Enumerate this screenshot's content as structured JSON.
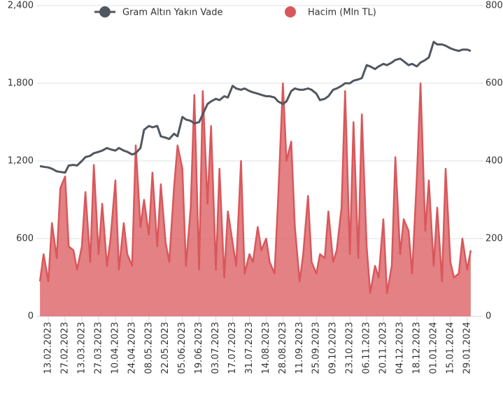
{
  "chart_data": {
    "type": "line",
    "x": [
      "06.02.2023",
      "09.02.2023",
      "13.02.2023",
      "16.02.2023",
      "20.02.2023",
      "23.02.2023",
      "27.02.2023",
      "02.03.2023",
      "06.03.2023",
      "09.03.2023",
      "13.03.2023",
      "16.03.2023",
      "20.03.2023",
      "23.03.2023",
      "27.03.2023",
      "30.03.2023",
      "03.04.2023",
      "06.04.2023",
      "10.04.2023",
      "13.04.2023",
      "17.04.2023",
      "20.04.2023",
      "24.04.2023",
      "27.04.2023",
      "01.05.2023",
      "04.05.2023",
      "08.05.2023",
      "11.05.2023",
      "15.05.2023",
      "18.05.2023",
      "22.05.2023",
      "25.05.2023",
      "29.05.2023",
      "01.06.2023",
      "05.06.2023",
      "08.06.2023",
      "12.06.2023",
      "15.06.2023",
      "19.06.2023",
      "22.06.2023",
      "26.06.2023",
      "29.06.2023",
      "03.07.2023",
      "06.07.2023",
      "10.07.2023",
      "13.07.2023",
      "17.07.2023",
      "20.07.2023",
      "24.07.2023",
      "27.07.2023",
      "31.07.2023",
      "03.08.2023",
      "07.08.2023",
      "10.08.2023",
      "14.08.2023",
      "17.08.2023",
      "21.08.2023",
      "24.08.2023",
      "28.08.2023",
      "31.08.2023",
      "04.09.2023",
      "07.09.2023",
      "11.09.2023",
      "14.09.2023",
      "18.09.2023",
      "21.09.2023",
      "25.09.2023",
      "28.09.2023",
      "02.10.2023",
      "05.10.2023",
      "09.10.2023",
      "12.10.2023",
      "16.10.2023",
      "19.10.2023",
      "23.10.2023",
      "26.10.2023",
      "30.10.2023",
      "02.11.2023",
      "06.11.2023",
      "09.11.2023",
      "13.11.2023",
      "16.11.2023",
      "20.11.2023",
      "23.11.2023",
      "27.11.2023",
      "30.11.2023",
      "04.12.2023",
      "07.12.2023",
      "11.12.2023",
      "14.12.2023",
      "18.12.2023",
      "21.12.2023",
      "25.12.2023",
      "28.12.2023",
      "01.01.2024",
      "04.01.2024",
      "08.01.2024",
      "11.01.2024",
      "15.01.2024",
      "18.01.2024",
      "22.01.2024",
      "25.01.2024",
      "29.01.2024",
      "01.02.2024"
    ],
    "series": [
      {
        "name": "Gram Altın Yakın Vade",
        "color": "#50575e",
        "values": [
          1160,
          1155,
          1150,
          1140,
          1120,
          1115,
          1110,
          1165,
          1170,
          1165,
          1200,
          1230,
          1240,
          1260,
          1270,
          1280,
          1300,
          1290,
          1280,
          1300,
          1280,
          1270,
          1250,
          1260,
          1300,
          1440,
          1470,
          1460,
          1470,
          1390,
          1380,
          1370,
          1410,
          1390,
          1540,
          1520,
          1510,
          1490,
          1500,
          1560,
          1640,
          1660,
          1680,
          1670,
          1700,
          1690,
          1780,
          1760,
          1750,
          1760,
          1740,
          1730,
          1720,
          1710,
          1700,
          1700,
          1690,
          1660,
          1640,
          1660,
          1740,
          1760,
          1750,
          1750,
          1760,
          1750,
          1720,
          1670,
          1680,
          1700,
          1750,
          1760,
          1780,
          1800,
          1800,
          1820,
          1830,
          1840,
          1940,
          1930,
          1910,
          1930,
          1950,
          1940,
          1960,
          1980,
          1990,
          1970,
          1940,
          1950,
          1930,
          1960,
          1980,
          2000,
          2120,
          2100,
          2100,
          2090,
          2070,
          2060,
          2050,
          2060,
          2060,
          2050
        ]
      },
      {
        "name": "Hacim (Mln TL)",
        "color": "#d9575b",
        "axis": "y2",
        "values": [
          90,
          160,
          90,
          240,
          150,
          330,
          360,
          180,
          170,
          120,
          180,
          320,
          140,
          390,
          160,
          290,
          130,
          200,
          350,
          120,
          240,
          160,
          130,
          440,
          230,
          300,
          210,
          370,
          180,
          340,
          190,
          140,
          330,
          440,
          380,
          130,
          280,
          570,
          120,
          580,
          290,
          490,
          120,
          380,
          100,
          270,
          190,
          130,
          400,
          110,
          160,
          140,
          230,
          170,
          200,
          140,
          110,
          300,
          600,
          400,
          450,
          230,
          90,
          160,
          310,
          140,
          110,
          160,
          150,
          270,
          140,
          170,
          280,
          580,
          160,
          500,
          150,
          520,
          180,
          60,
          130,
          100,
          250,
          60,
          130,
          410,
          160,
          250,
          220,
          110,
          360,
          600,
          220,
          350,
          130,
          280,
          90,
          380,
          140,
          100,
          110,
          200,
          120,
          170
        ]
      }
    ],
    "xlim": [
      "03.02.2023",
      "11.02.2024"
    ],
    "xticks": [
      "13.02.2023",
      "27.02.2023",
      "13.03.2023",
      "27.03.2023",
      "10.04.2023",
      "24.04.2023",
      "08.05.2023",
      "22.05.2023",
      "05.06.2023",
      "19.06.2023",
      "03.07.2023",
      "17.07.2023",
      "31.07.2023",
      "14.08.2023",
      "28.08.2023",
      "11.09.2023",
      "25.09.2023",
      "09.10.2023",
      "23.10.2023",
      "06.11.2023",
      "20.11.2023",
      "04.12.2023",
      "18.12.2023",
      "01.01.2024",
      "15.01.2024",
      "29.01.2024"
    ],
    "ylim": [
      0,
      2400
    ],
    "yticks": [
      0,
      600,
      {
        "value": 1200,
        "label": "1,200"
      },
      {
        "value": 1800,
        "label": "1,800"
      },
      {
        "value": 2400,
        "label": "2,400"
      }
    ],
    "y2lim": [
      0,
      800
    ],
    "y2ticks": [
      0,
      200,
      400,
      600,
      800
    ],
    "grid": true,
    "legend": "top"
  }
}
